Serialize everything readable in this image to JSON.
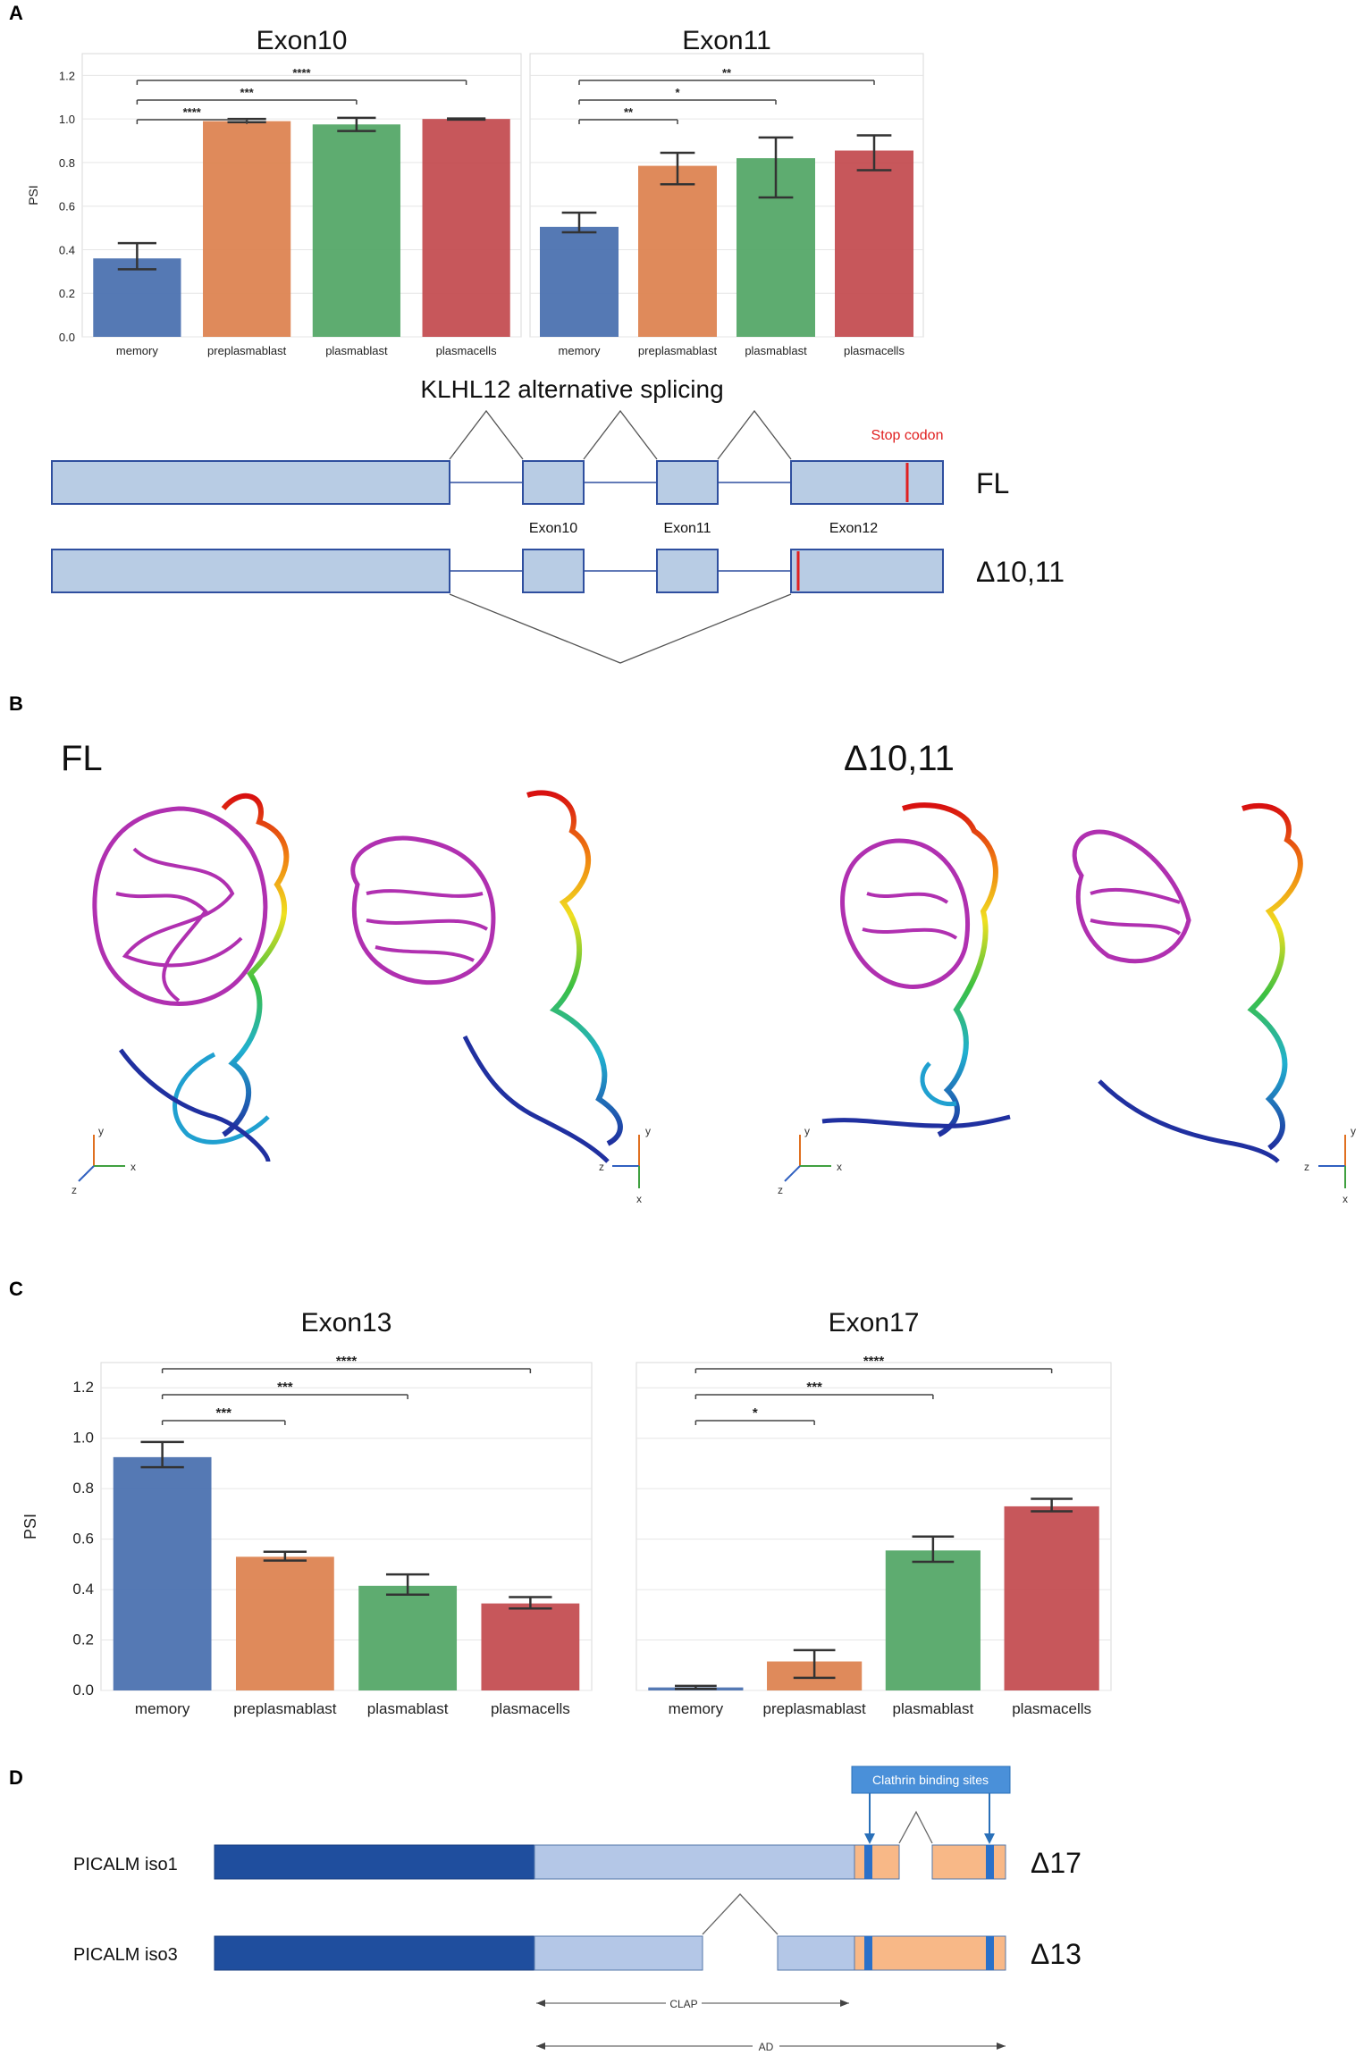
{
  "panels": {
    "a": "A",
    "b": "B",
    "c": "C",
    "d": "D"
  },
  "colors": {
    "memory": "#4c72b0",
    "preplasmablast": "#dd8452",
    "plasmablast": "#55a868",
    "plasmacells": "#c44e52",
    "exon_fill": "#b8cce4",
    "exon_stroke": "#2f4f9f",
    "dark_blue": "#1f4e9e",
    "light_blue": "#b4c7e7",
    "orange": "#f8b887",
    "clathrin": "#4a90d9"
  },
  "chart_data": [
    {
      "id": "exon10",
      "type": "bar",
      "title": "Exon10",
      "ylabel": "PSI",
      "ylim": [
        0,
        1.3
      ],
      "yticks": [
        "0.0",
        "0.2",
        "0.4",
        "0.6",
        "0.8",
        "1.0",
        "1.2"
      ],
      "categories": [
        "memory",
        "preplasmablast",
        "plasmablast",
        "plasmacells"
      ],
      "values": [
        0.36,
        0.99,
        0.975,
        1.0
      ],
      "errors": [
        [
          0.31,
          0.43
        ],
        [
          0.985,
          1.0
        ],
        [
          0.945,
          1.005
        ],
        [
          0.997,
          1.002
        ]
      ],
      "significance": [
        {
          "from": 0,
          "to": 1,
          "label": "****"
        },
        {
          "from": 0,
          "to": 2,
          "label": "***"
        },
        {
          "from": 0,
          "to": 3,
          "label": "****"
        }
      ],
      "grid": true
    },
    {
      "id": "exon11",
      "type": "bar",
      "title": "Exon11",
      "ylabel": "",
      "ylim": [
        0,
        1.3
      ],
      "yticks": [],
      "categories": [
        "memory",
        "preplasmablast",
        "plasmablast",
        "plasmacells"
      ],
      "values": [
        0.505,
        0.785,
        0.82,
        0.855
      ],
      "errors": [
        [
          0.48,
          0.57
        ],
        [
          0.7,
          0.845
        ],
        [
          0.64,
          0.915
        ],
        [
          0.765,
          0.925
        ]
      ],
      "significance": [
        {
          "from": 0,
          "to": 1,
          "label": "**"
        },
        {
          "from": 0,
          "to": 2,
          "label": "*"
        },
        {
          "from": 0,
          "to": 3,
          "label": "**"
        }
      ],
      "grid": true
    },
    {
      "id": "exon13",
      "type": "bar",
      "title": "Exon13",
      "ylabel": "PSI",
      "ylim": [
        0,
        1.3
      ],
      "yticks": [
        "0.0",
        "0.2",
        "0.4",
        "0.6",
        "0.8",
        "1.0",
        "1.2"
      ],
      "categories": [
        "memory",
        "preplasmablast",
        "plasmablast",
        "plasmacells"
      ],
      "values": [
        0.925,
        0.53,
        0.415,
        0.345
      ],
      "errors": [
        [
          0.885,
          0.985
        ],
        [
          0.515,
          0.55
        ],
        [
          0.38,
          0.46
        ],
        [
          0.325,
          0.37
        ]
      ],
      "significance": [
        {
          "from": 0,
          "to": 1,
          "label": "***"
        },
        {
          "from": 0,
          "to": 2,
          "label": "***"
        },
        {
          "from": 0,
          "to": 3,
          "label": "****"
        }
      ],
      "grid": true
    },
    {
      "id": "exon17",
      "type": "bar",
      "title": "Exon17",
      "ylabel": "",
      "ylim": [
        0,
        1.3
      ],
      "yticks": [],
      "categories": [
        "memory",
        "preplasmablast",
        "plasmablast",
        "plasmacells"
      ],
      "values": [
        0.012,
        0.115,
        0.555,
        0.73
      ],
      "errors": [
        [
          0.006,
          0.018
        ],
        [
          0.05,
          0.16
        ],
        [
          0.51,
          0.61
        ],
        [
          0.71,
          0.76
        ]
      ],
      "significance": [
        {
          "from": 0,
          "to": 1,
          "label": "*"
        },
        {
          "from": 0,
          "to": 2,
          "label": "***"
        },
        {
          "from": 0,
          "to": 3,
          "label": "****"
        }
      ],
      "grid": true
    }
  ],
  "klhl12": {
    "title": "KLHL12 alternative splicing",
    "stop_codon": "Stop codon",
    "fl_label": "FL",
    "delta_label": "Δ10,11",
    "exon10": "Exon10",
    "exon11": "Exon11",
    "exon12": "Exon12"
  },
  "structures": {
    "fl_label": "FL",
    "delta_label": "Δ10,11",
    "axis_y": "y",
    "axis_x": "x",
    "axis_z": "z"
  },
  "picalm": {
    "clathrin": "Clathrin binding sites",
    "iso1": "PICALM iso1",
    "iso3": "PICALM iso3",
    "delta17": "Δ17",
    "delta13": "Δ13",
    "clap": "CLAP",
    "ad": "AD"
  }
}
